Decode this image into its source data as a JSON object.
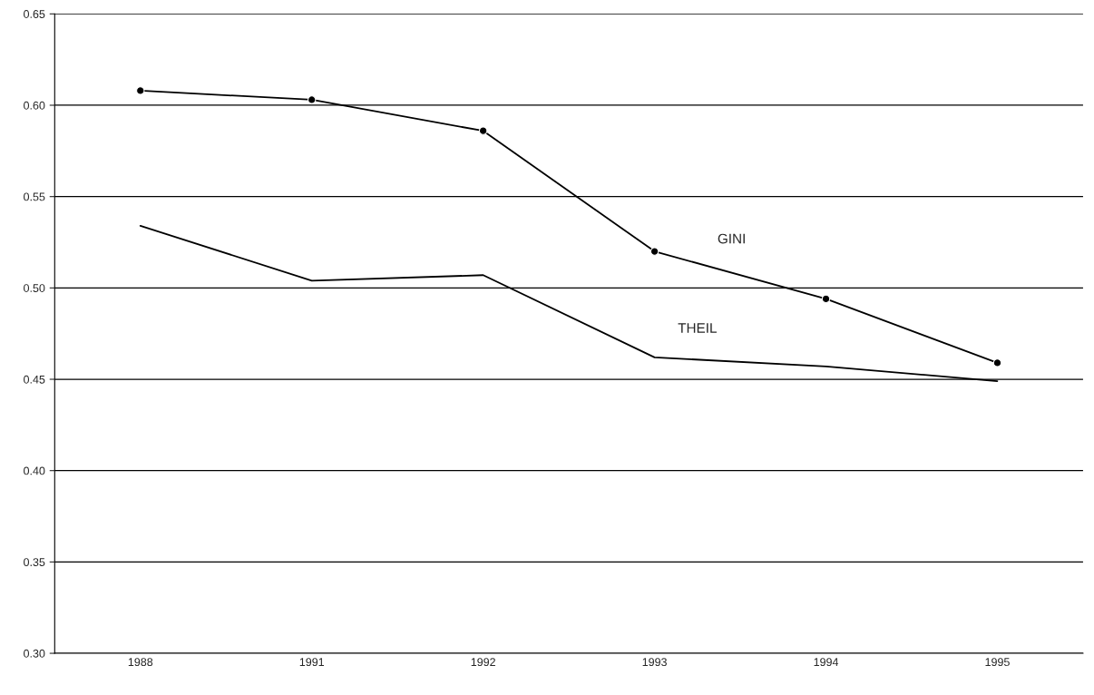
{
  "chart_data": {
    "type": "line",
    "categories": [
      "1988",
      "1991",
      "1992",
      "1993",
      "1994",
      "1995"
    ],
    "series": [
      {
        "name": "GINI",
        "color": "#000000",
        "marker": "circle",
        "values": [
          0.608,
          0.603,
          0.586,
          0.52,
          0.494,
          0.459
        ]
      },
      {
        "name": "THEIL",
        "color": "#000000",
        "marker": "none",
        "values": [
          0.534,
          0.504,
          0.507,
          0.462,
          0.457,
          0.449
        ]
      }
    ],
    "ylim": [
      0.3,
      0.65
    ],
    "yticks": [
      {
        "value": 0.3,
        "label": "0.30"
      },
      {
        "value": 0.35,
        "label": "0.35"
      },
      {
        "value": 0.4,
        "label": "0.40"
      },
      {
        "value": 0.45,
        "label": "0.45"
      },
      {
        "value": 0.5,
        "label": "0.50"
      },
      {
        "value": 0.55,
        "label": "0.55"
      },
      {
        "value": 0.6,
        "label": "0.60"
      },
      {
        "value": 0.65,
        "label": "0.65"
      }
    ],
    "grid": "y",
    "legend": false,
    "line_style": "solid"
  }
}
